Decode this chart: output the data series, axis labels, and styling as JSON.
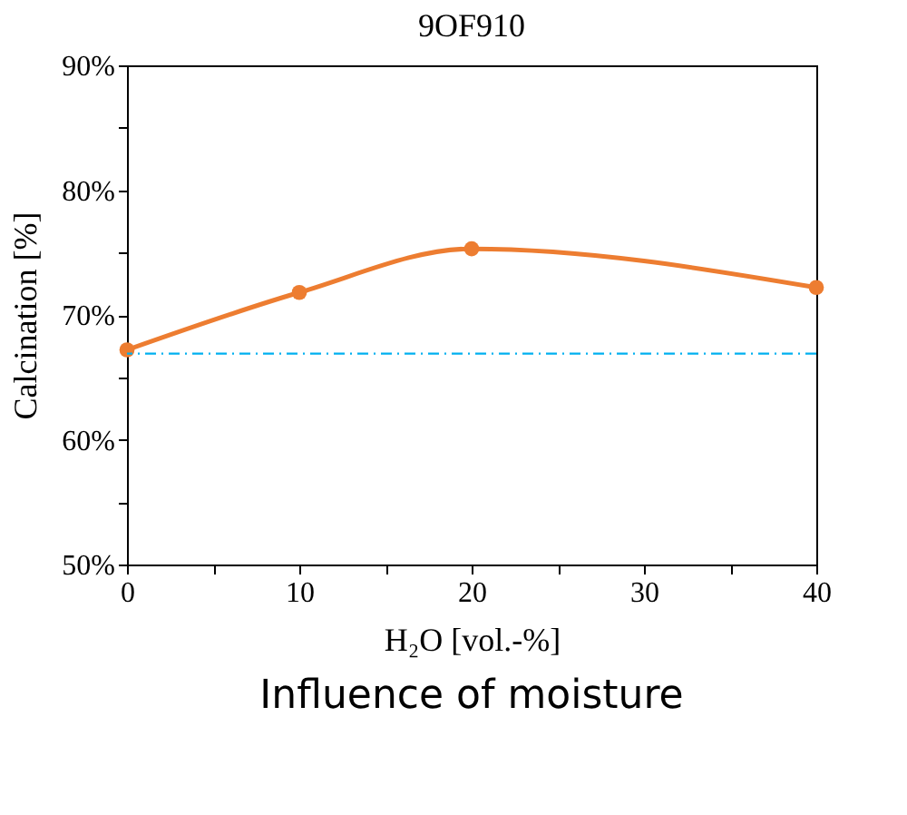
{
  "chart_data": {
    "type": "line",
    "title": "9OF910",
    "xlabel": "H₂O [vol.-%]",
    "ylabel": "Calcination [%]",
    "x": [
      0,
      10,
      20,
      40
    ],
    "series": [
      {
        "color": "#ed7d31",
        "values": [
          67.2,
          71.8,
          75.3,
          72.2
        ]
      }
    ],
    "xlim": [
      0,
      40
    ],
    "ylim": [
      50,
      90
    ],
    "xticks": [
      0,
      {
        "value": 5,
        "label": null
      },
      10,
      {
        "value": 15,
        "label": null
      },
      20,
      {
        "value": 25,
        "label": null
      },
      30,
      {
        "value": 35,
        "label": null
      },
      40
    ],
    "yticks": [
      {
        "value": 50,
        "label": "50%"
      },
      {
        "value": 55,
        "label": null
      },
      {
        "value": 60,
        "label": "60%"
      },
      {
        "value": 65,
        "label": null
      },
      {
        "value": 70,
        "label": "70%"
      },
      {
        "value": 75,
        "label": null
      },
      {
        "value": 80,
        "label": "80%"
      },
      {
        "value": 85,
        "label": null
      },
      {
        "value": 90,
        "label": "90%"
      }
    ],
    "ref_lines": [
      {
        "axis": "y",
        "value": 66.9,
        "color": "#00b0f0",
        "line_style": "dashed"
      }
    ],
    "marker": "circle",
    "line_style": "solid",
    "grid": false,
    "annotations": [
      "Influence of moisture"
    ]
  }
}
